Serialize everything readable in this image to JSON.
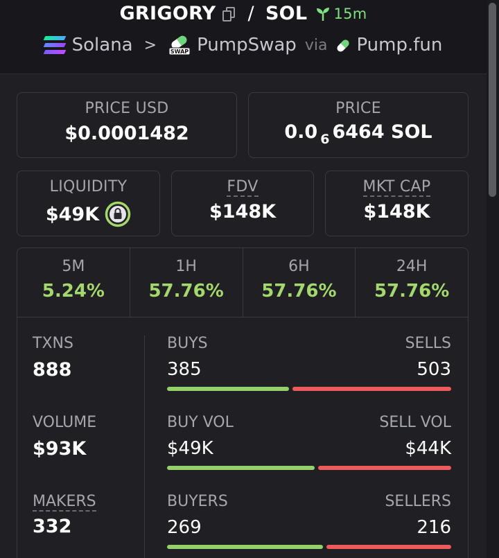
{
  "header": {
    "base_symbol": "GRIGORY",
    "separator": "/",
    "quote_symbol": "SOL",
    "age": "15m",
    "chain": "Solana",
    "chevron": ">",
    "dex": "PumpSwap",
    "dex_icon_text": "SWAP",
    "via": "via",
    "launchpad": "Pump.fun"
  },
  "price_usd": {
    "label": "PRICE USD",
    "value": "$0.0001482"
  },
  "price": {
    "label": "PRICE",
    "prefix": "0.0",
    "zeros": "6",
    "digits": "6464",
    "unit": "SOL"
  },
  "liquidity": {
    "label": "LIQUIDITY",
    "value": "$49K"
  },
  "fdv": {
    "label": "FDV",
    "value": "$148K"
  },
  "mkt_cap": {
    "label": "MKT CAP",
    "value": "$148K"
  },
  "changes": [
    {
      "label": "5M",
      "value": "5.24%"
    },
    {
      "label": "1H",
      "value": "57.76%"
    },
    {
      "label": "6H",
      "value": "57.76%"
    },
    {
      "label": "24H",
      "value": "57.76%"
    }
  ],
  "txns": {
    "label": "TXNS",
    "value": "888"
  },
  "volume": {
    "label": "VOLUME",
    "value": "$93K"
  },
  "makers": {
    "label": "MAKERS",
    "value": "332"
  },
  "buys_sells": {
    "left_label": "BUYS",
    "right_label": "SELLS",
    "left_value": "385",
    "right_value": "503",
    "left_fraction": 0.434
  },
  "vol_split": {
    "left_label": "BUY VOL",
    "right_label": "SELL VOL",
    "left_value": "$49K",
    "right_value": "$44K",
    "left_fraction": 0.527
  },
  "buyers_sellers": {
    "left_label": "BUYERS",
    "right_label": "SELLERS",
    "left_value": "269",
    "right_value": "216",
    "left_fraction": 0.555
  },
  "colors": {
    "positive": "#a3d86a",
    "buy_bar": "#93d16a",
    "sell_bar": "#ef5a5a",
    "age": "#7ee07e"
  }
}
